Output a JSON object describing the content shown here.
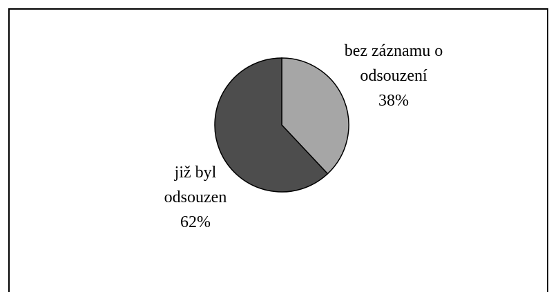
{
  "chart_data": {
    "type": "pie",
    "categories": [
      "bez záznamu o odsouzení",
      "již byl odsouzen"
    ],
    "values": [
      38,
      62
    ],
    "value_labels": [
      "38%",
      "62%"
    ],
    "colors": [
      "#a6a6a6",
      "#4d4d4d"
    ]
  }
}
